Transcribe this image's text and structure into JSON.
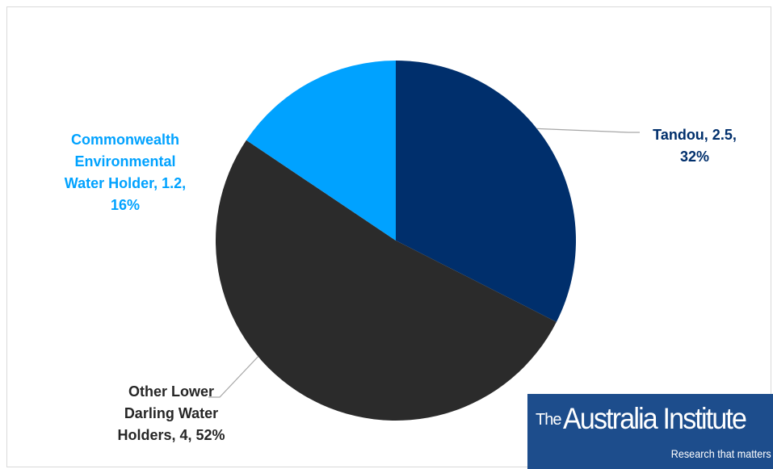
{
  "chart_data": {
    "type": "pie",
    "title": "",
    "start_angle_deg": 0,
    "direction": "clockwise",
    "slices": [
      {
        "category": "Tandou",
        "value": 2.5,
        "percent": 32,
        "color": "#002f6c",
        "label_lines": [
          "Tandou, 2.5,",
          "32%"
        ],
        "label_color": "#002f6c"
      },
      {
        "category": "Other Lower Darling Water Holders",
        "value": 4,
        "percent": 52,
        "color": "#2b2b2b",
        "label_lines": [
          "Other Lower",
          "Darling Water",
          "Holders, 4, 52%"
        ],
        "label_color": "#262626"
      },
      {
        "category": "Commonwealth Environmental Water Holder",
        "value": 1.2,
        "percent": 16,
        "color": "#00a2ff",
        "label_lines": [
          "Commonwealth",
          "Environmental",
          "Water Holder, 1.2,",
          "16%"
        ],
        "label_color": "#00a2ff"
      }
    ],
    "leader_line_color": "#a6a6a6"
  },
  "logo": {
    "prefix": "The",
    "name": "Australia Institute",
    "tagline": "Research that matters",
    "background": "#1d4d8c"
  }
}
